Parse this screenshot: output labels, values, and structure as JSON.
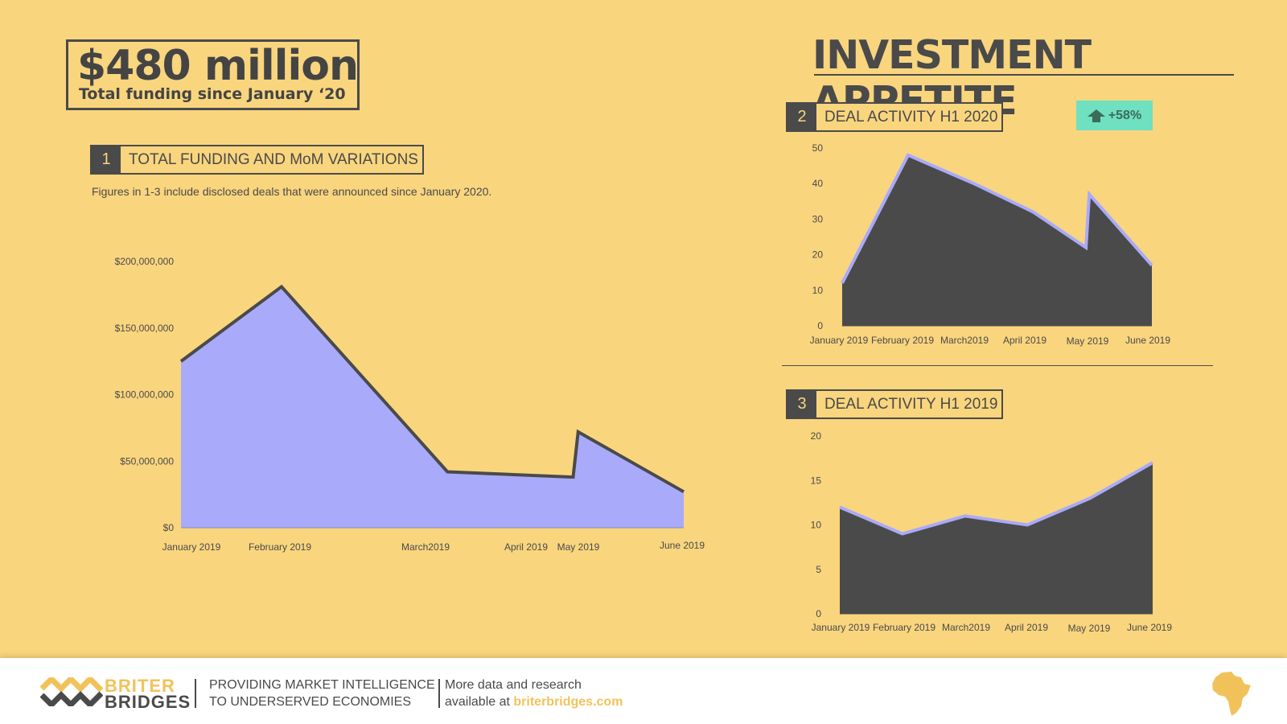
{
  "headline": {
    "amount": "$480 million",
    "subtitle": "Total funding since January ‘20"
  },
  "title": "INVESTMENT APPETITE",
  "note": "Figures in 1-3 include disclosed deals that were announced since January 2020.",
  "badge": {
    "text": "+58%",
    "icon": "up-arrow-icon",
    "color": "#6FE0C0"
  },
  "footer": {
    "brand_line1": "BRITER",
    "brand_line2": "BRIDGES",
    "tagline_line1": "PROVIDING MARKET INTELLIGENCE",
    "tagline_line2": "TO UNDERSERVED ECONOMIES",
    "more_line1": "More data and research",
    "more_line2_prefix": "available at ",
    "more_link": "briterbridges.com"
  },
  "colors": {
    "background": "#F9D57E",
    "dark": "#4a4a4a",
    "accent_purple": "#A9AAFA",
    "accent_yellow": "#F2C25A"
  },
  "chart_data": [
    {
      "id": "1",
      "type": "area",
      "label": "TOTAL FUNDING AND MoM VARIATIONS",
      "categories": [
        "January 2019",
        "February 2019",
        "March2019",
        "April 2019",
        "May 2019",
        "June 2019"
      ],
      "x": [
        0,
        1,
        2.65,
        3.9,
        3.95,
        5
      ],
      "values": [
        125000000,
        181000000,
        42000000,
        38000000,
        72000000,
        27000000
      ],
      "ylim": [
        0,
        200000000
      ],
      "yticks": [
        "$0",
        "$50,000,000",
        "$100,000,000",
        "$150,000,000",
        "$200,000,000"
      ],
      "fill": "#A9AAFA",
      "line": "#4a4a4a",
      "grid": false
    },
    {
      "id": "2",
      "type": "area",
      "label": "DEAL ACTIVITY H1 2020",
      "categories": [
        "January 2019",
        "February 2019",
        "March2019",
        "April 2019",
        "May 2019",
        "June 2019"
      ],
      "x": [
        0,
        1,
        2,
        2.9,
        3.7,
        3.75,
        4.7
      ],
      "values": [
        12,
        48,
        40,
        32,
        22,
        37,
        17
      ],
      "ylim": [
        0,
        50
      ],
      "yticks": [
        "0",
        "10",
        "20",
        "30",
        "40",
        "50"
      ],
      "fill": "#4a4a4a",
      "line": "#A9AAFA",
      "grid": false
    },
    {
      "id": "3",
      "type": "area",
      "label": "DEAL ACTIVITY H1 2019",
      "categories": [
        "January 2019",
        "February 2019",
        "March2019",
        "April 2019",
        "May 2019",
        "June 2019"
      ],
      "x": [
        0,
        1,
        2,
        3,
        4,
        5
      ],
      "values": [
        12,
        9,
        11,
        10,
        13,
        17
      ],
      "ylim": [
        0,
        20
      ],
      "yticks": [
        "0",
        "5",
        "10",
        "15",
        "20"
      ],
      "fill": "#4a4a4a",
      "line": "#A9AAFA",
      "grid": false
    }
  ]
}
